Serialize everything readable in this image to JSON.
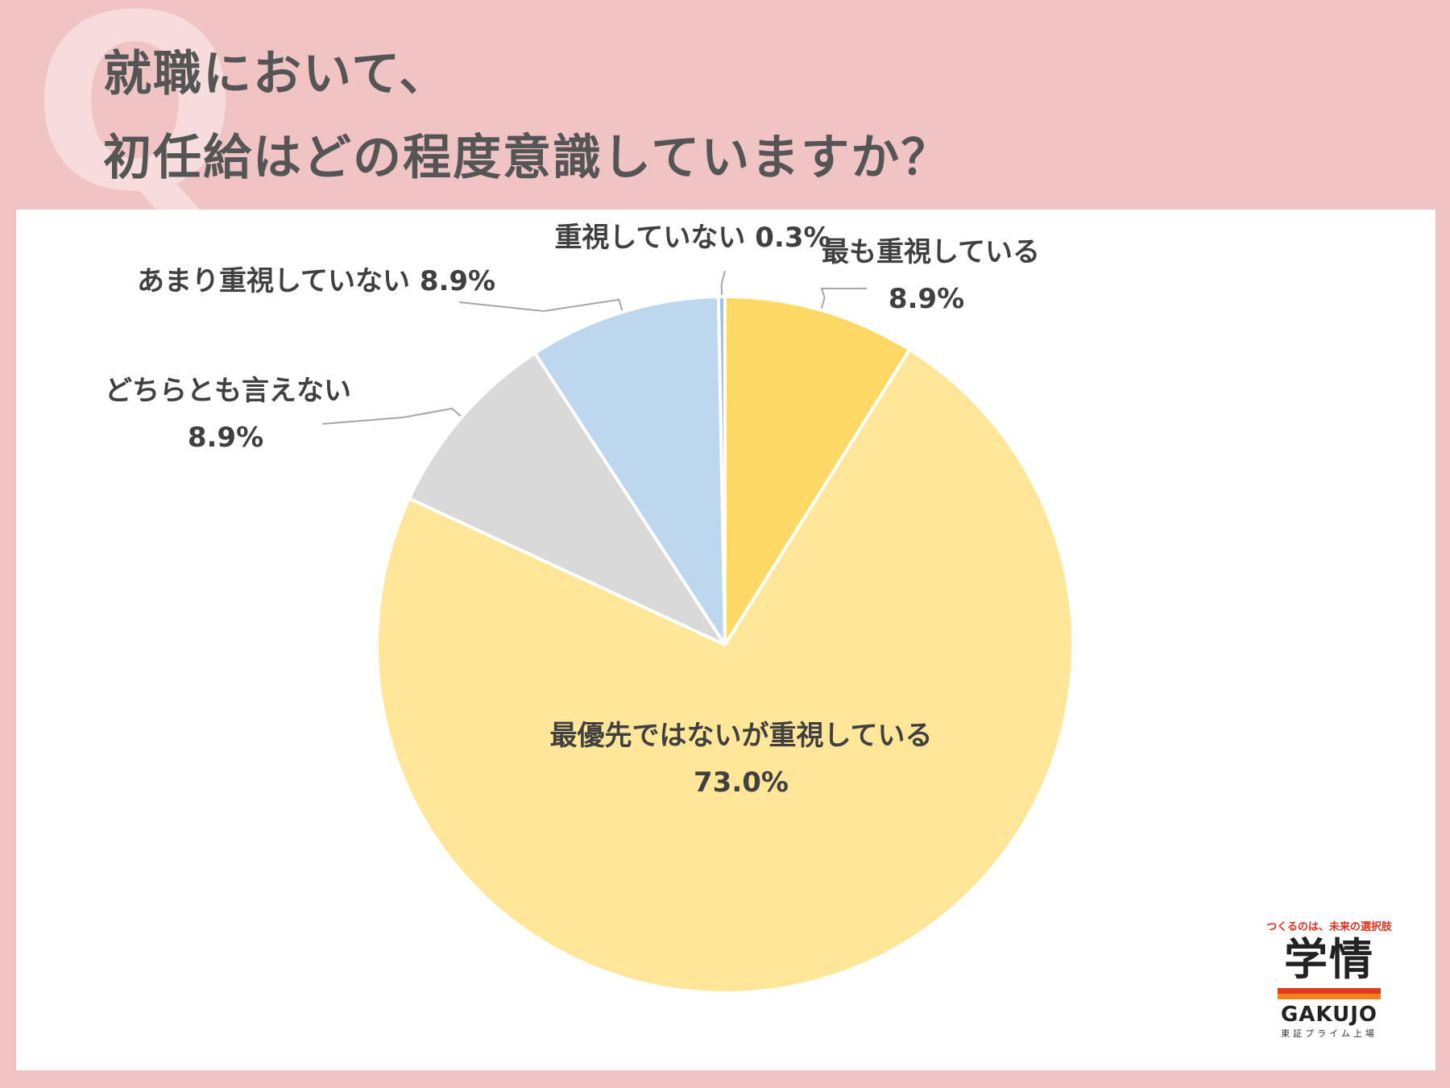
{
  "title": {
    "line1": "就職において、",
    "line2": "初任給はどの程度意識していますか？"
  },
  "brand": {
    "tagline": "つくるのは、未来の選択肢",
    "name": "学情",
    "roman": "GAKUJO",
    "sub": "東証プライム上場"
  },
  "colors": {
    "background": "#f0c3c5",
    "panel": "#ffffff",
    "q_mark": "#f6dcdd"
  },
  "chart_data": {
    "type": "pie",
    "start_angle_deg": 0,
    "direction": "clockwise",
    "slices": [
      {
        "label": "最も重視している",
        "value": 8.9,
        "value_text": "8.9%",
        "color": "#ffd966"
      },
      {
        "label": "最優先ではないが重視している",
        "value": 73.0,
        "value_text": "73.0%",
        "color": "#ffe699"
      },
      {
        "label": "どちらとも言えない",
        "value": 8.9,
        "value_text": "8.9%",
        "color": "#d9d9d9"
      },
      {
        "label": "あまり重視していない",
        "value": 8.9,
        "value_text": "8.9%",
        "color": "#bdd7ee"
      },
      {
        "label": "重視していない",
        "value": 0.3,
        "value_text": "0.3%",
        "color": "#9dc3e6"
      }
    ]
  }
}
